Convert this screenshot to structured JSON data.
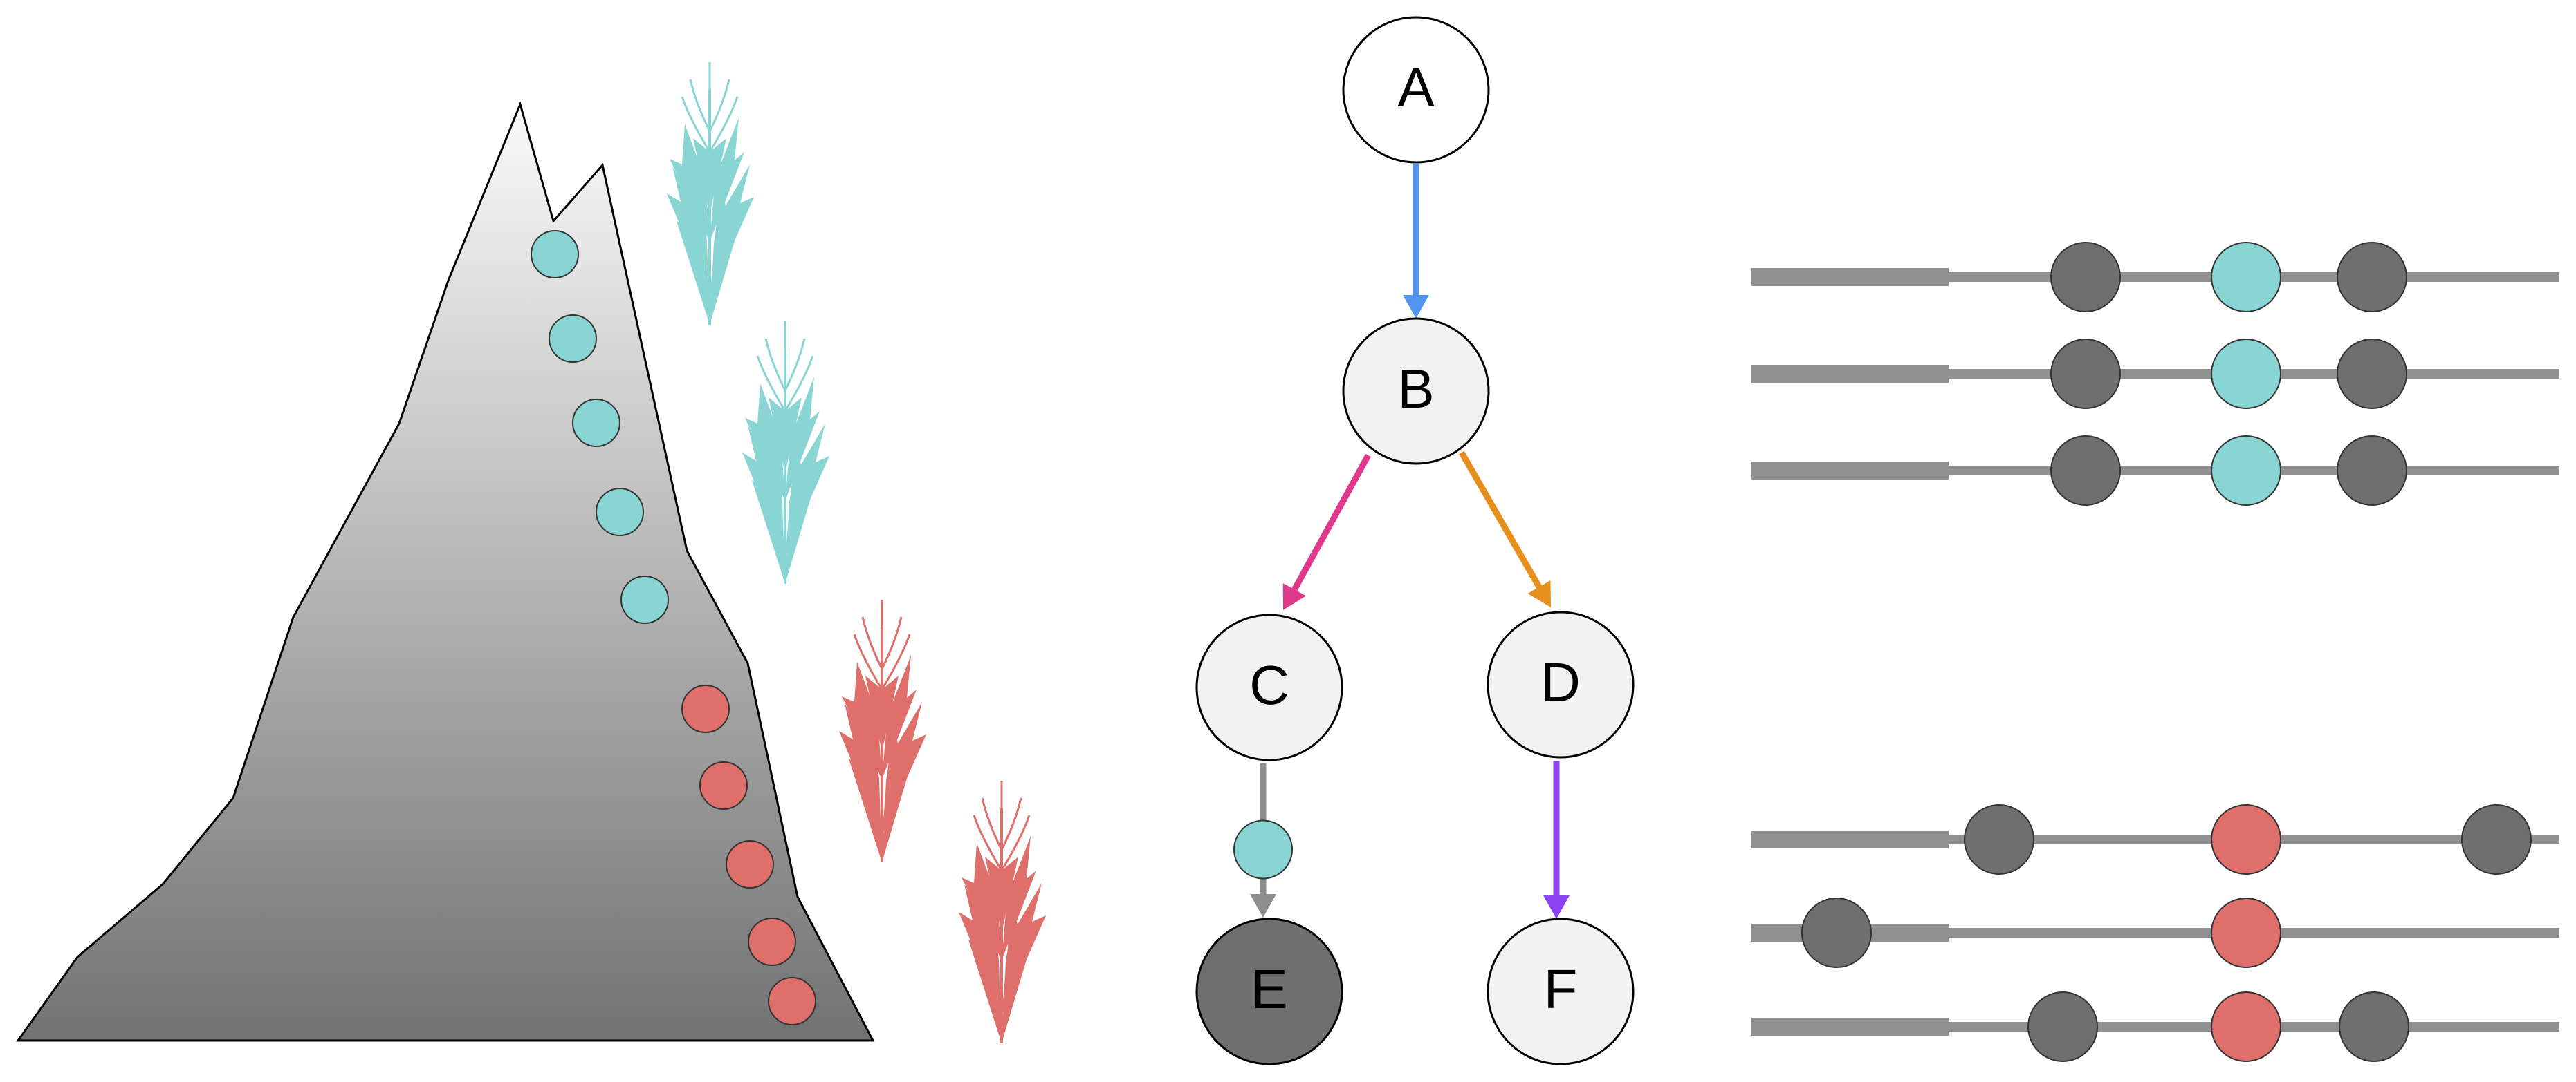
{
  "colors": {
    "teal": "#88d5d3",
    "red": "#de6f6a",
    "dark_gray": "#6f6f6f",
    "node_fill": "#f2f2f2",
    "line_gray": "#909090",
    "edge_ab": "#5394ee",
    "edge_bc": "#e0398c",
    "edge_bd": "#e68f1d",
    "edge_df": "#8a43ee",
    "edge_ce": "#8e8e8e"
  },
  "mountain": {
    "teal_dot_count": 5,
    "red_dot_count": 5
  },
  "plants": [
    {
      "color": "teal"
    },
    {
      "color": "teal"
    },
    {
      "color": "red"
    },
    {
      "color": "red"
    }
  ],
  "tree": {
    "nodes": [
      {
        "id": "A",
        "label": "A",
        "fill": "white"
      },
      {
        "id": "B",
        "label": "B",
        "fill": "light"
      },
      {
        "id": "C",
        "label": "C",
        "fill": "light"
      },
      {
        "id": "D",
        "label": "D",
        "fill": "light"
      },
      {
        "id": "E",
        "label": "E",
        "fill": "dark"
      },
      {
        "id": "F",
        "label": "F",
        "fill": "light"
      }
    ],
    "edges": [
      {
        "from": "A",
        "to": "B",
        "color": "edge_ab"
      },
      {
        "from": "B",
        "to": "C",
        "color": "edge_bc"
      },
      {
        "from": "B",
        "to": "D",
        "color": "edge_bd"
      },
      {
        "from": "C",
        "to": "E",
        "color": "edge_ce",
        "marker": "teal"
      },
      {
        "from": "D",
        "to": "F",
        "color": "edge_df"
      }
    ]
  },
  "chromosome_groups": [
    {
      "name": "top",
      "rows": [
        {
          "dots": [
            "dark",
            "teal",
            "dark"
          ]
        },
        {
          "dots": [
            "dark",
            "teal",
            "dark"
          ]
        },
        {
          "dots": [
            "dark",
            "teal",
            "dark"
          ]
        }
      ]
    },
    {
      "name": "bottom",
      "rows": [
        {
          "dots": [
            "dark",
            "red",
            "dark"
          ]
        },
        {
          "dots": [
            "dark",
            "red"
          ]
        },
        {
          "dots": [
            "dark",
            "red",
            "dark"
          ]
        }
      ]
    }
  ]
}
